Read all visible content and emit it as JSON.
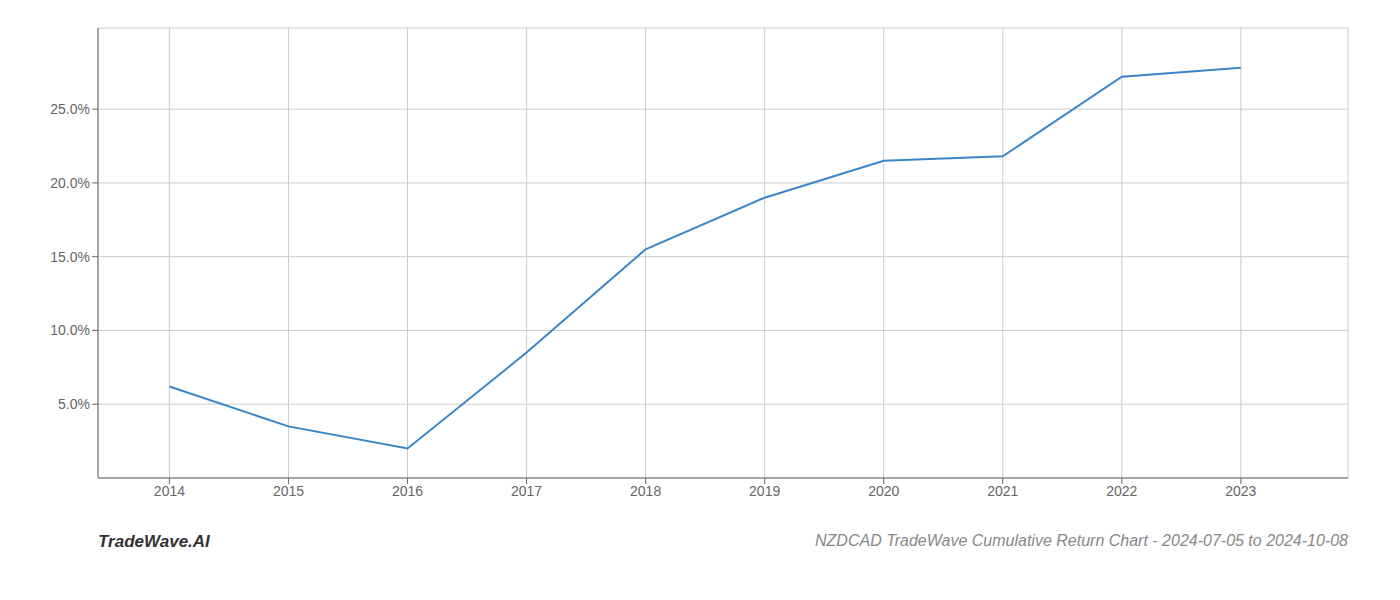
{
  "chart_data": {
    "type": "line",
    "title": "NZDCAD TradeWave Cumulative Return Chart - 2024-07-05 to 2024-10-08",
    "annotations": [
      "TradeWave.AI"
    ],
    "x": [
      2014,
      2015,
      2016,
      2017,
      2018,
      2019,
      2020,
      2021,
      2022,
      2023
    ],
    "values": [
      6.2,
      3.5,
      2.0,
      8.5,
      15.5,
      19.0,
      21.5,
      21.8,
      27.2,
      27.8
    ],
    "color": "#3a86c8",
    "xlim": [
      2013.4,
      2023.9
    ],
    "xticks": [
      2014,
      2015,
      2016,
      2017,
      2018,
      2019,
      2020,
      2021,
      2022,
      2023
    ],
    "ylim": [
      0.0,
      30.5
    ],
    "yticks": [
      {
        "value": 5.0,
        "label": "5.0%"
      },
      {
        "value": 10.0,
        "label": "10.0%"
      },
      {
        "value": 15.0,
        "label": "15.0%"
      },
      {
        "value": 20.0,
        "label": "20.0%"
      },
      {
        "value": 25.0,
        "label": "25.0%"
      }
    ],
    "grid": true
  }
}
